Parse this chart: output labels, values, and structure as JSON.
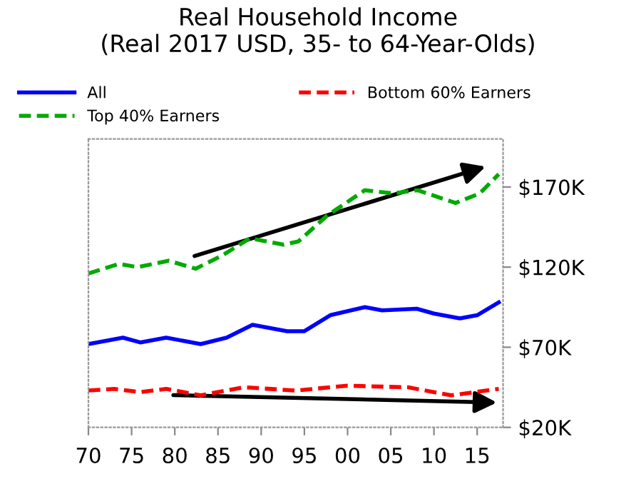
{
  "chart_data": {
    "type": "line",
    "title": "Real Household Income\n(Real 2017 USD, 35- to 64-Year-Olds)",
    "xlim": [
      1970,
      2018
    ],
    "xticks": [
      {
        "value": 1970,
        "label": "70"
      },
      {
        "value": 1975,
        "label": "75"
      },
      {
        "value": 1980,
        "label": "80"
      },
      {
        "value": 1985,
        "label": "85"
      },
      {
        "value": 1990,
        "label": "90"
      },
      {
        "value": 1995,
        "label": "95"
      },
      {
        "value": 2000,
        "label": "00"
      },
      {
        "value": 2005,
        "label": "05"
      },
      {
        "value": 2010,
        "label": "10"
      },
      {
        "value": 2015,
        "label": "15"
      }
    ],
    "ylim": [
      20,
      200
    ],
    "yticks": [
      {
        "value": 20,
        "label": "$20K"
      },
      {
        "value": 70,
        "label": "$70K"
      },
      {
        "value": 120,
        "label": "$120K"
      },
      {
        "value": 170,
        "label": "$170K"
      }
    ],
    "grid": false,
    "legend": "top",
    "marker": "none",
    "series": [
      {
        "name": "All",
        "color": "#0000ff",
        "line_style": "solid",
        "x": [
          1970,
          1972,
          1974,
          1976,
          1979,
          1983,
          1986,
          1989,
          1991,
          1993,
          1995,
          1998,
          2002,
          2004,
          2008,
          2010,
          2013,
          2015,
          2017.5
        ],
        "values": [
          72,
          74,
          76,
          73,
          76,
          72,
          76,
          84,
          82,
          80,
          80,
          90,
          95,
          93,
          94,
          91,
          88,
          90,
          98
        ]
      },
      {
        "name": "Bottom 60% Earners",
        "color": "#ff0000",
        "line_style": "dashed",
        "x": [
          1970,
          1973,
          1976,
          1979,
          1983,
          1988,
          1994,
          2000,
          2007,
          2012,
          2017.5
        ],
        "values": [
          43,
          44,
          42,
          44,
          40,
          45,
          43,
          46,
          45,
          40,
          44
        ]
      },
      {
        "name": "Top 40% Earners",
        "color": "#00aa00",
        "line_style": "dashed",
        "x": [
          1970,
          1973.5,
          1975.7,
          1979.3,
          1982.4,
          1985.4,
          1988.7,
          1992.6,
          1994.3,
          1997.6,
          2002,
          2005.3,
          2008.1,
          2012.5,
          2015.3,
          2017.5
        ],
        "values": [
          116,
          122,
          120,
          124,
          119,
          127,
          138,
          134,
          136,
          152,
          168,
          166,
          168,
          160,
          166,
          178
        ]
      }
    ]
  }
}
